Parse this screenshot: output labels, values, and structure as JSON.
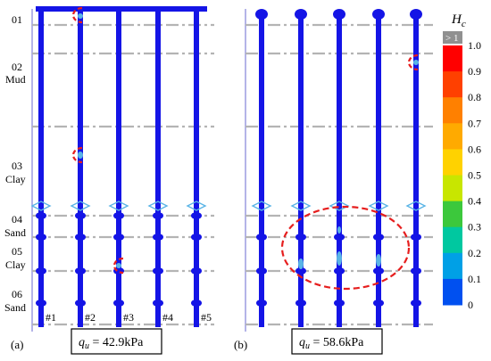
{
  "panel_a": {
    "tag": "(a)",
    "qu_symbol": "q",
    "qu_subscript": "u",
    "qu_value": " = 42.9kPa",
    "soil_layers": [
      {
        "num": "01",
        "name": ""
      },
      {
        "num": "02",
        "name": "Mud"
      },
      {
        "num": "03",
        "name": "Clay"
      },
      {
        "num": "04",
        "name": "Sand"
      },
      {
        "num": "05",
        "name": "Clay"
      },
      {
        "num": "06",
        "name": "Sand"
      }
    ],
    "pile_labels": [
      "#1",
      "#2",
      "#3",
      "#4",
      "#5"
    ]
  },
  "panel_b": {
    "tag": "(b)",
    "qu_symbol": "q",
    "qu_subscript": "u",
    "qu_value": " = 58.6kPa"
  },
  "colorbar": {
    "title_symbol": "H",
    "title_subscript": "c",
    "over_label": "> 1",
    "tick_labels": [
      "1.0",
      "0.9",
      "0.8",
      "0.7",
      "0.6",
      "0.5",
      "0.4",
      "0.3",
      "0.2",
      "0.1",
      "0"
    ],
    "colors": [
      "#ff0000",
      "#ff4000",
      "#ff8000",
      "#ffaa00",
      "#ffd200",
      "#c8e600",
      "#3cc83c",
      "#00c8a0",
      "#00a0e6",
      "#0050f0",
      "#0000ff"
    ],
    "over_color": "#909090"
  },
  "colors": {
    "pile": "#1414e6",
    "hotspot": "#5ab4e6",
    "circle": "#e61e1e",
    "guide": "#b4b4b4"
  }
}
